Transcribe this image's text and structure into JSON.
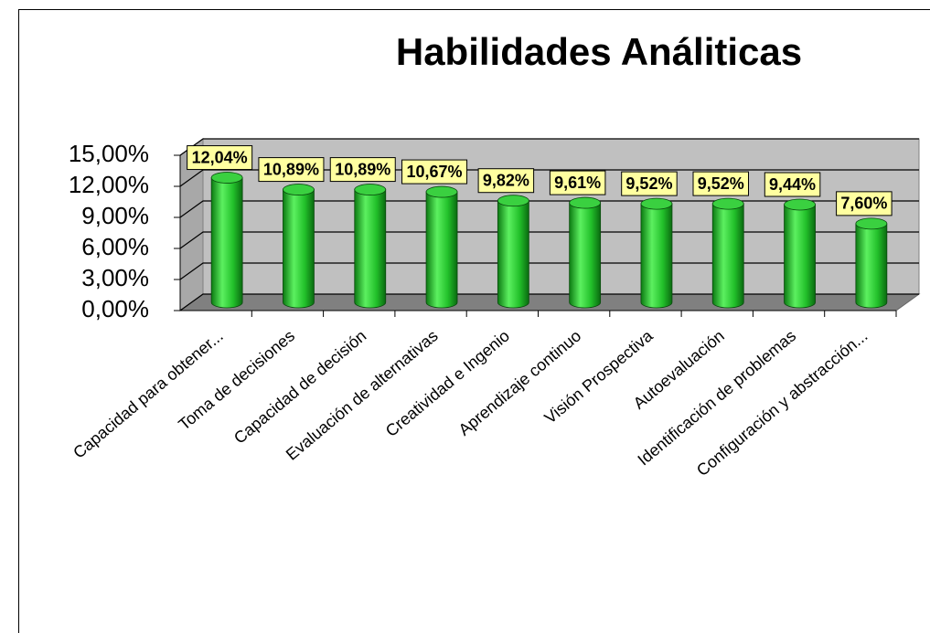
{
  "chart_data": {
    "type": "bar3d",
    "title": "Habilidades Análiticas",
    "categories": [
      "Capacidad para obtener...",
      "Toma de decisiones",
      "Capacidad de decisión",
      "Evaluación de alternativas",
      "Creatividad e Ingenio",
      "Aprendizaje continuo",
      "Visión Prospectiva",
      "Autoevaluación",
      "Identificación de problemas",
      "Configuración y abstracción..."
    ],
    "values": [
      12.04,
      10.89,
      10.89,
      10.67,
      9.82,
      9.61,
      9.52,
      9.52,
      9.44,
      7.6
    ],
    "value_labels": [
      "12,04%",
      "10,89%",
      "10,89%",
      "10,67%",
      "9,82%",
      "9,61%",
      "9,52%",
      "9,52%",
      "9,44%",
      "7,60%"
    ],
    "color": "#22c02a",
    "ylim": [
      0,
      15
    ],
    "yticks": [
      {
        "value": 0,
        "label": "0,00%"
      },
      {
        "value": 3,
        "label": "3,00%"
      },
      {
        "value": 6,
        "label": "6,00%"
      },
      {
        "value": 9,
        "label": "9,00%"
      },
      {
        "value": 12,
        "label": "12,00%"
      },
      {
        "value": 15,
        "label": "15,00%"
      }
    ],
    "grid": true
  }
}
